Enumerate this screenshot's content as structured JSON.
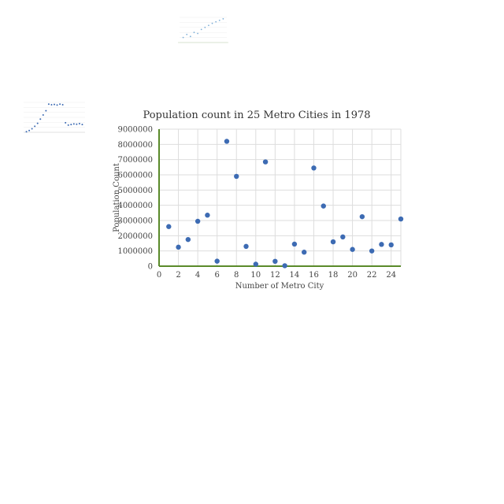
{
  "chart_data": [
    {
      "type": "scatter",
      "title": "Population count in 25 Metro Cities in 1978",
      "xlabel": "Number of Metro City",
      "ylabel": "Population Count",
      "xlim": [
        0,
        25
      ],
      "ylim": [
        0,
        9000000
      ],
      "x_ticks": [
        "0",
        "2",
        "4",
        "6",
        "8",
        "10",
        "12",
        "14",
        "16",
        "18",
        "20",
        "22",
        "24"
      ],
      "y_ticks": [
        "0",
        "1000000",
        "2000000",
        "3000000",
        "4000000",
        "5000000",
        "6000000",
        "7000000",
        "8000000",
        "9000000"
      ],
      "grid": true,
      "point_color": "#3d6bb3",
      "axis_color": "#5a8a2a",
      "points": [
        {
          "x": 1,
          "y": 2600000
        },
        {
          "x": 2,
          "y": 1250000
        },
        {
          "x": 3,
          "y": 1750000
        },
        {
          "x": 4,
          "y": 2950000
        },
        {
          "x": 5,
          "y": 3350000
        },
        {
          "x": 6,
          "y": 330000
        },
        {
          "x": 7,
          "y": 8200000
        },
        {
          "x": 8,
          "y": 5900000
        },
        {
          "x": 9,
          "y": 1300000
        },
        {
          "x": 10,
          "y": 130000
        },
        {
          "x": 11,
          "y": 6850000
        },
        {
          "x": 12,
          "y": 320000
        },
        {
          "x": 13,
          "y": 30000
        },
        {
          "x": 14,
          "y": 1450000
        },
        {
          "x": 15,
          "y": 920000
        },
        {
          "x": 16,
          "y": 6450000
        },
        {
          "x": 17,
          "y": 3950000
        },
        {
          "x": 18,
          "y": 1600000
        },
        {
          "x": 19,
          "y": 1920000
        },
        {
          "x": 20,
          "y": 1100000
        },
        {
          "x": 21,
          "y": 3250000
        },
        {
          "x": 22,
          "y": 1000000
        },
        {
          "x": 23,
          "y": 1430000
        },
        {
          "x": 24,
          "y": 1400000
        },
        {
          "x": 25,
          "y": 3100000
        }
      ]
    },
    {
      "type": "scatter",
      "title": "",
      "xlabel": "",
      "ylabel": "",
      "point_color": "#7fb0d8",
      "points": [
        {
          "x": 1,
          "y": 2
        },
        {
          "x": 2,
          "y": 3.2
        },
        {
          "x": 3,
          "y": 2.4
        },
        {
          "x": 4,
          "y": 4
        },
        {
          "x": 5,
          "y": 3.6
        },
        {
          "x": 6,
          "y": 5.2
        },
        {
          "x": 7,
          "y": 6
        },
        {
          "x": 8,
          "y": 6.8
        },
        {
          "x": 9,
          "y": 7.6
        },
        {
          "x": 10,
          "y": 8.2
        },
        {
          "x": 11,
          "y": 8.8
        },
        {
          "x": 12,
          "y": 9.4
        }
      ]
    },
    {
      "type": "scatter",
      "title": "",
      "xlabel": "",
      "ylabel": "",
      "point_color": "#3d6bb3",
      "points": [
        {
          "x": 1,
          "y": 0.2
        },
        {
          "x": 2,
          "y": 0.6
        },
        {
          "x": 3,
          "y": 1.2
        },
        {
          "x": 4,
          "y": 2.0
        },
        {
          "x": 5,
          "y": 3.0
        },
        {
          "x": 6,
          "y": 4.4
        },
        {
          "x": 7,
          "y": 5.8
        },
        {
          "x": 8,
          "y": 7.2
        },
        {
          "x": 9,
          "y": 9.4
        },
        {
          "x": 10,
          "y": 9.2
        },
        {
          "x": 11,
          "y": 9.3
        },
        {
          "x": 12,
          "y": 9.1
        },
        {
          "x": 13,
          "y": 9.4
        },
        {
          "x": 14,
          "y": 9.2
        },
        {
          "x": 15,
          "y": 3.2
        },
        {
          "x": 16,
          "y": 2.4
        },
        {
          "x": 17,
          "y": 2.6
        },
        {
          "x": 18,
          "y": 2.8
        },
        {
          "x": 19,
          "y": 2.7
        },
        {
          "x": 20,
          "y": 2.9
        },
        {
          "x": 21,
          "y": 2.6
        }
      ]
    }
  ]
}
